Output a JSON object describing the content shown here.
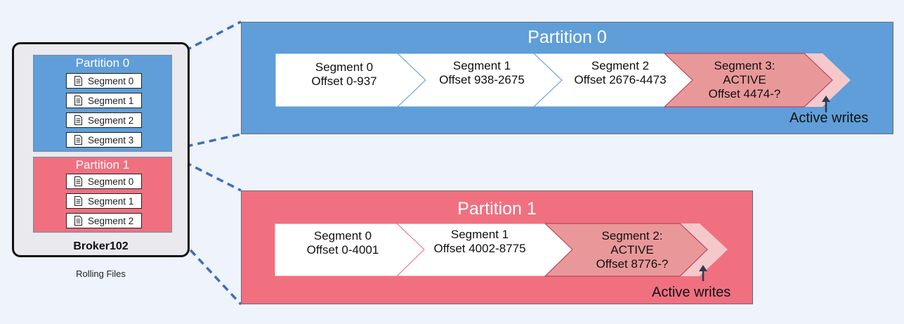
{
  "broker": {
    "name": "Broker102",
    "caption": "Rolling Files",
    "partitions": [
      {
        "label": "Partition 0",
        "segments": [
          "Segment 0",
          "Segment 1",
          "Segment 2",
          "Segment 3"
        ]
      },
      {
        "label": "Partition 1",
        "segments": [
          "Segment 0",
          "Segment 1",
          "Segment 2"
        ]
      }
    ]
  },
  "detail": [
    {
      "label": "Partition 0",
      "segments": [
        {
          "name": "Segment 0",
          "offset": "Offset 0-937"
        },
        {
          "name": "Segment 1",
          "offset": "Offset 938-2675"
        },
        {
          "name": "Segment 2",
          "offset": "Offset 2676-4473"
        },
        {
          "name": "Segment 3:",
          "status": "ACTIVE",
          "offset": "Offset 4474-?"
        }
      ],
      "active_label": "Active writes"
    },
    {
      "label": "Partition 1",
      "segments": [
        {
          "name": "Segment 0",
          "offset": "Offset 0-4001"
        },
        {
          "name": "Segment 1",
          "offset": "Offset 4002-8775"
        },
        {
          "name": "Segment 2:",
          "status": "ACTIVE",
          "offset": "Offset 8776-?"
        }
      ],
      "active_label": "Active writes"
    }
  ],
  "colors": {
    "blue": "#5f9ed8",
    "pink": "#f07080",
    "active": "#e99899",
    "active_light": "#f5c9cb",
    "connector": "#3e6fb8"
  }
}
